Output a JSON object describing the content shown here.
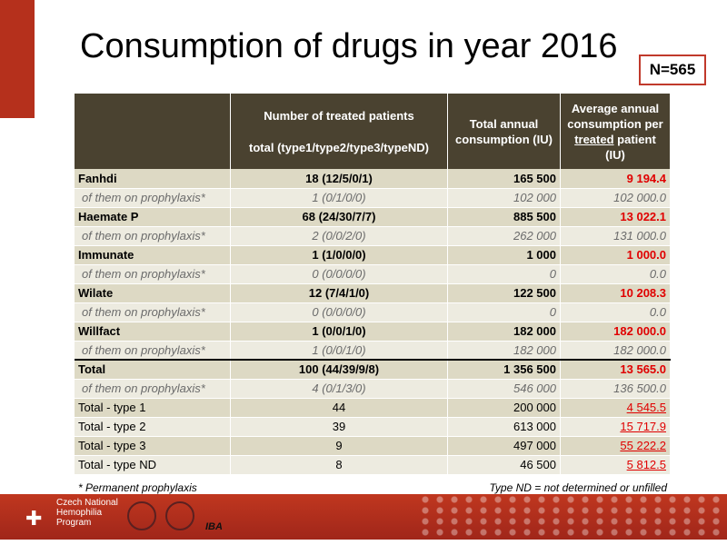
{
  "title": "Consumption of drugs in year 2016",
  "n_badge": "N=565",
  "headers": {
    "patients_line1": "Number of treated patients",
    "patients_line2": "total (type1/type2/type3/typeND)",
    "total": "Total annual consumption (IU)",
    "avg_pre": "Average annual consumption per",
    "avg_ul": "treated",
    "avg_post": "patient (IU)"
  },
  "rows": [
    {
      "label": "Fanhdi",
      "patients": "18 (12/5/0/1)",
      "total": "165 500",
      "avg": "9 194.4"
    },
    {
      "label": "of them on prophylaxis*",
      "patients": "1 (0/1/0/0)",
      "total": "102 000",
      "avg": "102 000.0"
    },
    {
      "label": "Haemate P",
      "patients": "68 (24/30/7/7)",
      "total": "885 500",
      "avg": "13 022.1"
    },
    {
      "label": "of them on prophylaxis*",
      "patients": "2 (0/0/2/0)",
      "total": "262 000",
      "avg": "131 000.0"
    },
    {
      "label": "Immunate",
      "patients": "1 (1/0/0/0)",
      "total": "1 000",
      "avg": "1 000.0"
    },
    {
      "label": "of them on prophylaxis*",
      "patients": "0 (0/0/0/0)",
      "total": "0",
      "avg": "0.0"
    },
    {
      "label": "Wilate",
      "patients": "12 (7/4/1/0)",
      "total": "122 500",
      "avg": "10 208.3"
    },
    {
      "label": "of them on prophylaxis*",
      "patients": "0 (0/0/0/0)",
      "total": "0",
      "avg": "0.0"
    },
    {
      "label": "Willfact",
      "patients": "1 (0/0/1/0)",
      "total": "182 000",
      "avg": "182 000.0"
    },
    {
      "label": "of them on prophylaxis*",
      "patients": "1 (0/0/1/0)",
      "total": "182 000",
      "avg": "182 000.0"
    },
    {
      "label": "Total",
      "patients": "100 (44/39/9/8)",
      "total": "1 356 500",
      "avg": "13 565.0"
    },
    {
      "label": "of them on prophylaxis*",
      "patients": "4 (0/1/3/0)",
      "total": "546 000",
      "avg": "136 500.0"
    },
    {
      "label": "Total - type 1",
      "patients": "44",
      "total": "200 000",
      "avg": "4 545.5"
    },
    {
      "label": "Total - type 2",
      "patients": "39",
      "total": "613 000",
      "avg": "15 717.9"
    },
    {
      "label": "Total - type 3",
      "patients": "9",
      "total": "497 000",
      "avg": "55 222.2"
    },
    {
      "label": "Total - type ND",
      "patients": "8",
      "total": "46 500",
      "avg": "5 812.5"
    }
  ],
  "footnote_left": "* Permanent prophylaxis",
  "footnote_right": "Type ND = not determined or unfilled",
  "footer": {
    "logo_line1": "Czech National",
    "logo_line2": "Hemophilia",
    "logo_line3": "Program",
    "iba": "IBA"
  }
}
